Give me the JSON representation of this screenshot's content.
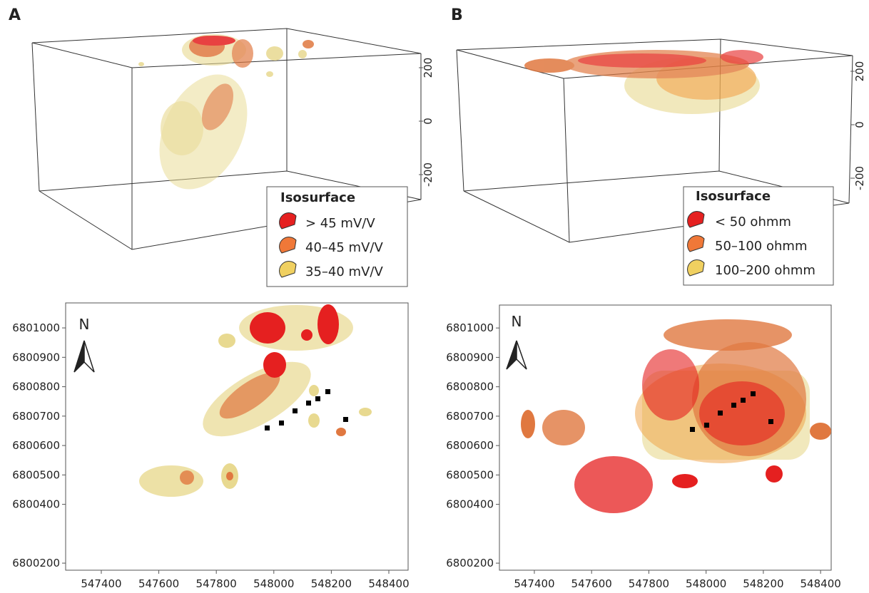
{
  "panels": [
    {
      "label": "A",
      "north": "N",
      "legend": {
        "title": "Isosurface",
        "items": [
          "> 45 mV/V",
          "40–45 mV/V",
          "35–40 mV/V"
        ]
      },
      "zticks": [
        200,
        0,
        -200
      ],
      "map": {
        "xlim": [
          547276,
          548467
        ],
        "xticks": [
          547400,
          547600,
          547800,
          548000,
          548200,
          548400
        ],
        "ylim": [
          6800176,
          6801085
        ],
        "yticks": [
          6800200,
          6800400,
          6800500,
          6800600,
          6800700,
          6800800,
          6800900,
          6801000
        ]
      }
    },
    {
      "label": "B",
      "north": "N",
      "legend": {
        "title": "Isosurface",
        "items": [
          "< 50 ohmm",
          "50–100 ohmm",
          "100–200 ohmm"
        ]
      },
      "zticks": [
        200,
        0,
        -200
      ],
      "map": {
        "xlim": [
          547278,
          548437
        ],
        "xticks": [
          547400,
          547600,
          547800,
          548000,
          548200,
          548400
        ],
        "ylim": [
          6800176,
          6801078
        ],
        "yticks": [
          6800200,
          6800400,
          6800500,
          6800600,
          6800700,
          6800800,
          6800900,
          6801000
        ]
      }
    }
  ]
}
